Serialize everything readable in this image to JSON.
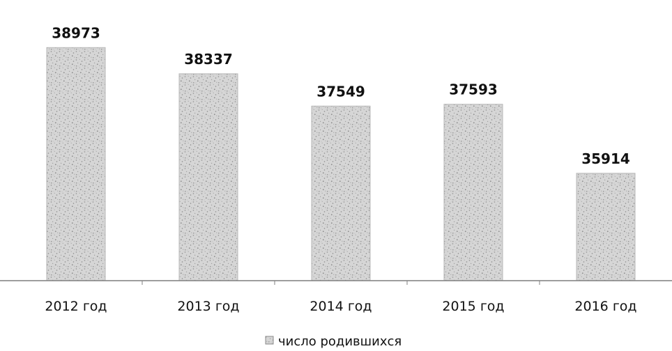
{
  "chart_data": {
    "type": "bar",
    "title": "",
    "xlabel": "",
    "ylabel": "",
    "categories": [
      "2012 год",
      "2013 год",
      "2014 год",
      "2015 год",
      "2016 год"
    ],
    "series": [
      {
        "name": "число родившихся",
        "values": [
          38973,
          38337,
          37549,
          37593,
          35914
        ]
      }
    ],
    "data_labels": [
      "38973",
      "38337",
      "37549",
      "37593",
      "35914"
    ],
    "ylim": [
      33300,
      39250
    ],
    "grid": false,
    "legend_position": "bottom",
    "bar_fill": "#c4c4c4",
    "axis_color": "#7f7f7f",
    "text_color": "#111111"
  }
}
